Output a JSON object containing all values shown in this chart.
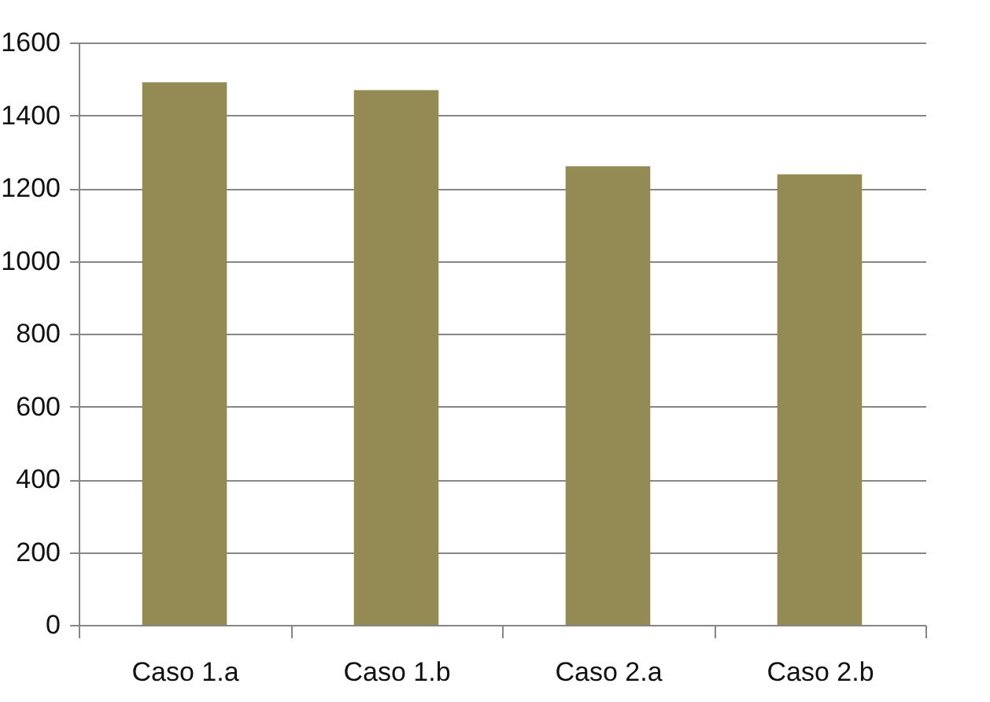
{
  "chart_data": {
    "type": "bar",
    "categories": [
      "Caso 1.a",
      "Caso 1.b",
      "Caso 2.a",
      "Caso 2.b"
    ],
    "values": [
      1491,
      1469,
      1260,
      1238
    ],
    "color": "#948a54",
    "ylim": [
      0,
      1600
    ],
    "yticks": [
      0,
      200,
      400,
      600,
      800,
      1000,
      1200,
      1400,
      1600
    ],
    "grid": "y"
  }
}
